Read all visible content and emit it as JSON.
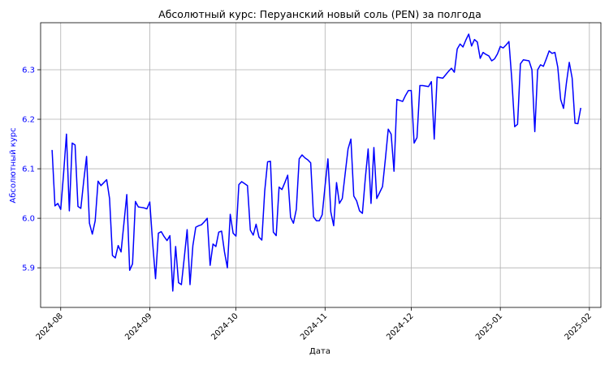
{
  "chart_data": {
    "type": "line",
    "title": "Абсолютный курс: Перуанский новый соль (PEN) за полгода",
    "xlabel": "Дата",
    "ylabel": "Абсолютный курс",
    "grid": true,
    "line_color": "#0000ff",
    "ylabel_color": "#0000ff",
    "xlim": [
      "2024-07-25",
      "2025-02-05"
    ],
    "ylim": [
      5.82,
      6.395
    ],
    "x_ticks": [
      "2024-08",
      "2024-09",
      "2024-10",
      "2024-11",
      "2024-12",
      "2025-01",
      "2025-02"
    ],
    "y_ticks": [
      5.9,
      6.0,
      6.1,
      6.2,
      6.3
    ],
    "series": [
      {
        "x": [
          "2024-07-29",
          "2024-07-30",
          "2024-07-31",
          "2024-08-01",
          "2024-08-02",
          "2024-08-03",
          "2024-08-04",
          "2024-08-05",
          "2024-08-06",
          "2024-08-07",
          "2024-08-08",
          "2024-08-09",
          "2024-08-10",
          "2024-08-11",
          "2024-08-12",
          "2024-08-13",
          "2024-08-14",
          "2024-08-15",
          "2024-08-16",
          "2024-08-17",
          "2024-08-18",
          "2024-08-19",
          "2024-08-20",
          "2024-08-21",
          "2024-08-22",
          "2024-08-23",
          "2024-08-24",
          "2024-08-25",
          "2024-08-26",
          "2024-08-27",
          "2024-08-28",
          "2024-08-29",
          "2024-08-30",
          "2024-08-31",
          "2024-09-01",
          "2024-09-02",
          "2024-09-03",
          "2024-09-04",
          "2024-09-05",
          "2024-09-06",
          "2024-09-07",
          "2024-09-08",
          "2024-09-09",
          "2024-09-10",
          "2024-09-11",
          "2024-09-12",
          "2024-09-13",
          "2024-09-14",
          "2024-09-15",
          "2024-09-16",
          "2024-09-17",
          "2024-09-18",
          "2024-09-19",
          "2024-09-20",
          "2024-09-21",
          "2024-09-22",
          "2024-09-23",
          "2024-09-24",
          "2024-09-25",
          "2024-09-26",
          "2024-09-27",
          "2024-09-28",
          "2024-09-29",
          "2024-09-30",
          "2024-10-01",
          "2024-10-02",
          "2024-10-03",
          "2024-10-04",
          "2024-10-05",
          "2024-10-06",
          "2024-10-07",
          "2024-10-08",
          "2024-10-09",
          "2024-10-10",
          "2024-10-11",
          "2024-10-12",
          "2024-10-13",
          "2024-10-14",
          "2024-10-15",
          "2024-10-16",
          "2024-10-17",
          "2024-10-18",
          "2024-10-19",
          "2024-10-20",
          "2024-10-21",
          "2024-10-22",
          "2024-10-23",
          "2024-10-24",
          "2024-10-25",
          "2024-10-26",
          "2024-10-27",
          "2024-10-28",
          "2024-10-29",
          "2024-10-30",
          "2024-10-31",
          "2024-11-01",
          "2024-11-02",
          "2024-11-03",
          "2024-11-04",
          "2024-11-05",
          "2024-11-06",
          "2024-11-07",
          "2024-11-08",
          "2024-11-09",
          "2024-11-10",
          "2024-11-11",
          "2024-11-12",
          "2024-11-13",
          "2024-11-14",
          "2024-11-15",
          "2024-11-16",
          "2024-11-17",
          "2024-11-18",
          "2024-11-19",
          "2024-11-20",
          "2024-11-21",
          "2024-11-22",
          "2024-11-23",
          "2024-11-24",
          "2024-11-25",
          "2024-11-26",
          "2024-11-27",
          "2024-11-28",
          "2024-11-29",
          "2024-11-30",
          "2024-12-01",
          "2024-12-02",
          "2024-12-03",
          "2024-12-04",
          "2024-12-05",
          "2024-12-06",
          "2024-12-07",
          "2024-12-08",
          "2024-12-09",
          "2024-12-10",
          "2024-12-11",
          "2024-12-12",
          "2024-12-13",
          "2024-12-14",
          "2024-12-15",
          "2024-12-16",
          "2024-12-17",
          "2024-12-18",
          "2024-12-19",
          "2024-12-20",
          "2024-12-21",
          "2024-12-22",
          "2024-12-23",
          "2024-12-24",
          "2024-12-25",
          "2024-12-26",
          "2024-12-27",
          "2024-12-28",
          "2024-12-29",
          "2024-12-30",
          "2024-12-31",
          "2025-01-01",
          "2025-01-02",
          "2025-01-03",
          "2025-01-04",
          "2025-01-05",
          "2025-01-06",
          "2025-01-07",
          "2025-01-08",
          "2025-01-09",
          "2025-01-10",
          "2025-01-11",
          "2025-01-12",
          "2025-01-13",
          "2025-01-14",
          "2025-01-15",
          "2025-01-16",
          "2025-01-17",
          "2025-01-18",
          "2025-01-19",
          "2025-01-20",
          "2025-01-21",
          "2025-01-22",
          "2025-01-23",
          "2025-01-24",
          "2025-01-25",
          "2025-01-26",
          "2025-01-27",
          "2025-01-28",
          "2025-01-29"
        ],
        "values": [
          6.138,
          6.025,
          6.03,
          6.018,
          6.09,
          6.17,
          6.015,
          6.152,
          6.148,
          6.024,
          6.02,
          6.075,
          6.125,
          5.99,
          5.968,
          5.995,
          6.075,
          6.066,
          6.072,
          6.078,
          6.04,
          5.925,
          5.92,
          5.945,
          5.932,
          5.99,
          6.048,
          5.895,
          5.908,
          6.034,
          6.023,
          6.022,
          6.021,
          6.019,
          6.033,
          5.95,
          5.878,
          5.97,
          5.973,
          5.963,
          5.955,
          5.965,
          5.853,
          5.943,
          5.87,
          5.866,
          5.92,
          5.977,
          5.866,
          5.945,
          5.982,
          5.985,
          5.987,
          5.993,
          6.0,
          5.905,
          5.948,
          5.943,
          5.972,
          5.974,
          5.932,
          5.9,
          6.008,
          5.97,
          5.964,
          6.068,
          6.074,
          6.07,
          6.066,
          5.976,
          5.966,
          5.988,
          5.962,
          5.956,
          6.055,
          6.114,
          6.115,
          5.972,
          5.965,
          6.063,
          6.058,
          6.072,
          6.087,
          6.002,
          5.99,
          6.018,
          6.12,
          6.128,
          6.122,
          6.118,
          6.112,
          6.003,
          5.995,
          5.995,
          6.007,
          6.065,
          6.12,
          6.013,
          5.985,
          6.072,
          6.03,
          6.04,
          6.09,
          6.14,
          6.16,
          6.045,
          6.035,
          6.015,
          6.01,
          6.08,
          6.14,
          6.03,
          6.143,
          6.04,
          6.052,
          6.064,
          6.12,
          6.18,
          6.17,
          6.095,
          6.24,
          6.238,
          6.236,
          6.248,
          6.258,
          6.258,
          6.152,
          6.163,
          6.268,
          6.268,
          6.267,
          6.266,
          6.276,
          6.16,
          6.285,
          6.284,
          6.283,
          6.29,
          6.297,
          6.303,
          6.295,
          6.342,
          6.352,
          6.346,
          6.36,
          6.372,
          6.348,
          6.361,
          6.356,
          6.323,
          6.335,
          6.331,
          6.328,
          6.318,
          6.322,
          6.332,
          6.347,
          6.344,
          6.35,
          6.357,
          6.28,
          6.185,
          6.19,
          6.312,
          6.32,
          6.319,
          6.318,
          6.3,
          6.175,
          6.3,
          6.31,
          6.307,
          6.322,
          6.338,
          6.333,
          6.335,
          6.305,
          6.24,
          6.222,
          6.273,
          6.315,
          6.283,
          6.192,
          6.191,
          6.223
        ]
      }
    ]
  }
}
